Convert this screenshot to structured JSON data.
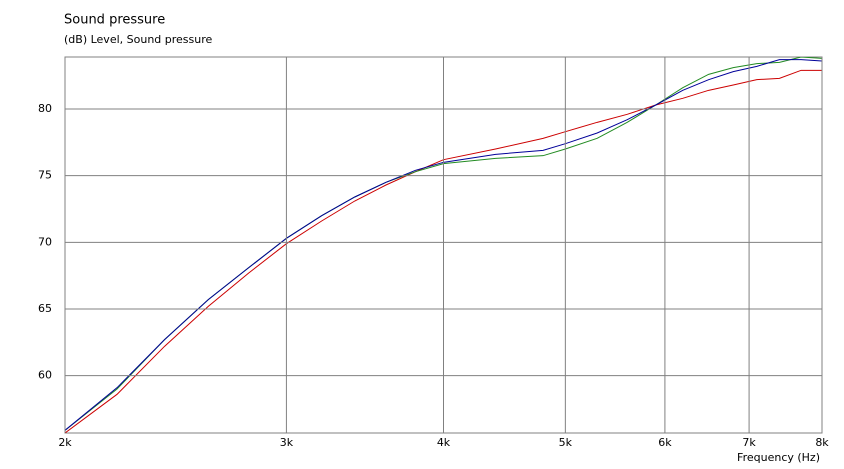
{
  "chart_data": {
    "type": "line",
    "title": "Sound pressure",
    "subtitle": "(dB)  Level, Sound pressure",
    "x_label": "Frequency  (Hz)",
    "log_x": true,
    "grid": true,
    "x": [
      2000,
      2200,
      2400,
      2600,
      2800,
      3000,
      3200,
      3400,
      3600,
      3800,
      4000,
      4400,
      4800,
      5000,
      5300,
      5600,
      5900,
      6200,
      6500,
      6800,
      7100,
      7400,
      7700,
      8000
    ],
    "series": [
      {
        "color": "#cc0000",
        "values": [
          55.7,
          58.6,
          62.2,
          65.2,
          67.7,
          69.9,
          71.6,
          73.1,
          74.3,
          75.3,
          76.2,
          77.0,
          77.8,
          78.3,
          79.0,
          79.6,
          80.3,
          80.8,
          81.4,
          81.8,
          82.2,
          82.3,
          82.9,
          82.9
        ]
      },
      {
        "color": "#228b22",
        "values": [
          55.9,
          59.0,
          62.7,
          65.7,
          68.1,
          70.3,
          72.0,
          73.4,
          74.5,
          75.3,
          75.9,
          76.3,
          76.5,
          77.0,
          77.8,
          79.0,
          80.3,
          81.6,
          82.6,
          83.1,
          83.4,
          83.5,
          83.9,
          83.8
        ]
      },
      {
        "color": "#000099",
        "values": [
          55.9,
          59.1,
          62.7,
          65.7,
          68.1,
          70.3,
          72.0,
          73.4,
          74.5,
          75.4,
          76.0,
          76.6,
          76.9,
          77.4,
          78.2,
          79.2,
          80.3,
          81.4,
          82.2,
          82.8,
          83.2,
          83.7,
          83.7,
          83.6
        ]
      }
    ],
    "xlim": [
      2000,
      8000
    ],
    "xticks": [
      {
        "value": 2000,
        "label": "2k"
      },
      {
        "value": 3000,
        "label": "3k"
      },
      {
        "value": 4000,
        "label": "4k"
      },
      {
        "value": 5000,
        "label": "5k"
      },
      {
        "value": 6000,
        "label": "6k"
      },
      {
        "value": 7000,
        "label": "7k"
      },
      {
        "value": 8000,
        "label": "8k"
      }
    ],
    "ylim": [
      55.7,
      83.9
    ],
    "yticks": [
      60,
      65,
      70,
      75,
      80
    ]
  }
}
